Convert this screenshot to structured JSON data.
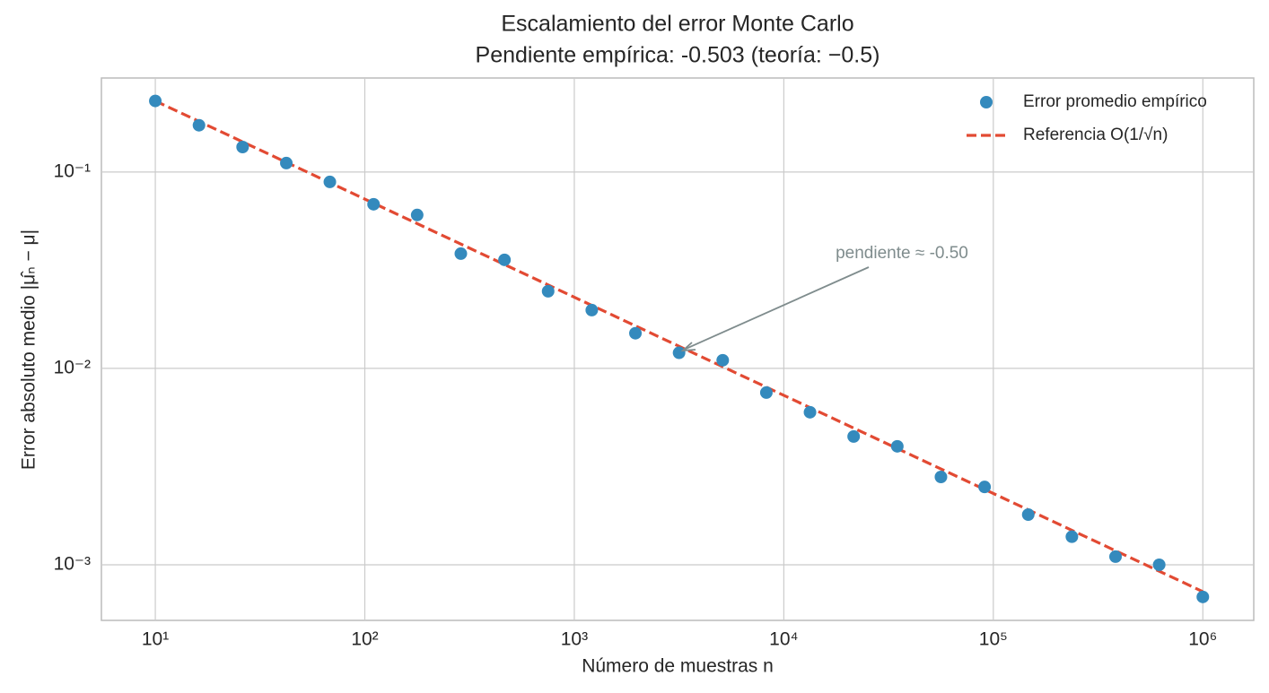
{
  "chart_data": {
    "type": "scatter",
    "title": "Escalamiento del error Monte Carlo",
    "subtitle": "Pendiente empírica: -0.503  (teoría: −0.5)",
    "x_label": "Número de muestras n",
    "y_label": "Error absoluto medio |μ̂ₙ − μ|",
    "annotation": "pendiente ≈ -0.50",
    "xscale": "log",
    "yscale": "log",
    "grid": true,
    "legend": "upper right",
    "xlim": [
      5.53,
      1750000
    ],
    "ylim": [
      0.000521,
      0.301
    ],
    "xticks": [
      {
        "value": 10,
        "label": "10¹"
      },
      {
        "value": 100,
        "label": "10²"
      },
      {
        "value": 1000,
        "label": "10³"
      },
      {
        "value": 10000,
        "label": "10⁴"
      },
      {
        "value": 100000,
        "label": "10⁵"
      },
      {
        "value": 1000000,
        "label": "10⁶"
      }
    ],
    "yticks": [
      {
        "value": 0.1,
        "label": "10⁻¹"
      },
      {
        "value": 0.01,
        "label": "10⁻²"
      },
      {
        "value": 0.001,
        "label": "10⁻³"
      }
    ],
    "series": [
      {
        "name": "Error promedio empírico",
        "type": "scatter",
        "color": "#348abd",
        "x": [
          10,
          16.16,
          26.1,
          42.2,
          68.1,
          110.1,
          177.8,
          287.3,
          464.2,
          749.9,
          1211.5,
          1957.4,
          3162.3,
          5108.9,
          8254,
          13335,
          21544,
          34807,
          56234,
          90852,
          146780,
          237137,
          383119,
          618966,
          1000000
        ],
        "values": [
          0.23,
          0.173,
          0.134,
          0.111,
          0.089,
          0.0685,
          0.0604,
          0.0384,
          0.0357,
          0.0247,
          0.0198,
          0.0151,
          0.012,
          0.011,
          0.00753,
          0.00598,
          0.0045,
          0.00401,
          0.0028,
          0.00249,
          0.0018,
          0.00139,
          0.0011,
          0.001,
          0.000686
        ]
      },
      {
        "name": "Referencia O(1/√n)",
        "type": "line",
        "linestyle": "dashed",
        "color": "#e24a33",
        "x": [
          10,
          1000000
        ],
        "values": [
          0.23,
          0.00073
        ]
      }
    ]
  }
}
